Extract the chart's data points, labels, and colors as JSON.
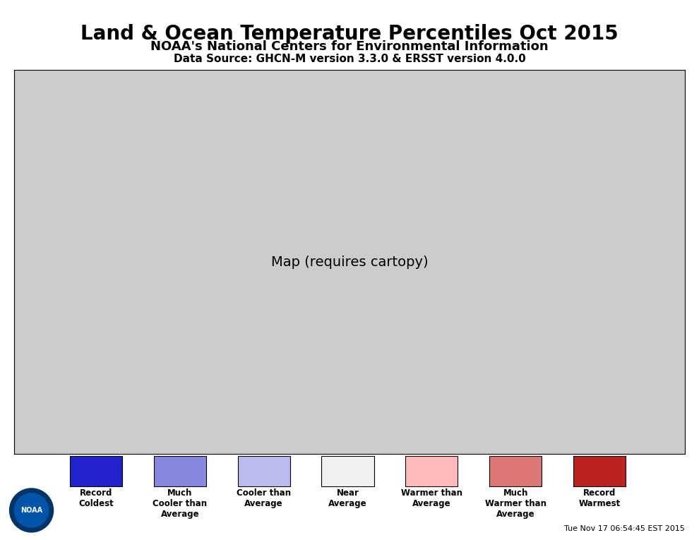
{
  "title": "Land & Ocean Temperature Percentiles Oct 2015",
  "subtitle": "NOAA's National Centers for Environmental Information",
  "datasource": "Data Source: GHCN-M version 3.3.0 & ERSST version 4.0.0",
  "timestamp": "Tue Nov 17 06:54:45 EST 2015",
  "legend_colors": [
    "#2222cc",
    "#8888dd",
    "#bbbbee",
    "#f0f0f0",
    "#ffbbbb",
    "#dd7777",
    "#bb2222"
  ],
  "legend_labels": [
    "Record\nColdest",
    "Much\nCooler than\nAverage",
    "Cooler than\nAverage",
    "Near\nAverage",
    "Warmer than\nAverage",
    "Much\nWarmer than\nAverage",
    "Record\nWarmest"
  ],
  "background_color": "#ffffff",
  "map_bg": "#aaaaaa",
  "ocean_color": "#cccccc"
}
